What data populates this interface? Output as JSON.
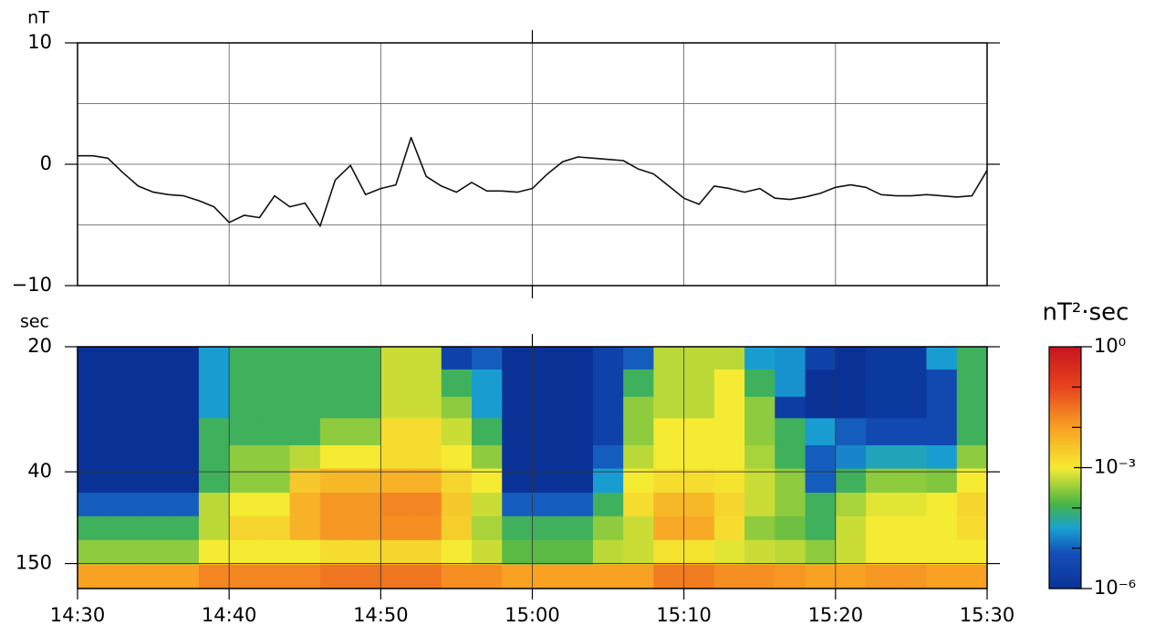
{
  "chart_data": [
    {
      "type": "line",
      "ylabel": "nT",
      "color": "#111111",
      "xlim": [
        "14:30",
        "15:30"
      ],
      "xticks": [
        "14:30",
        "14:40",
        "14:50",
        "15:00",
        "15:10",
        "15:20",
        "15:30"
      ],
      "ylim": [
        -10,
        10
      ],
      "yticks": [
        10,
        0,
        {
          "value": -10,
          "label": "−10"
        }
      ],
      "ygrid": [
        5,
        -5
      ],
      "x": [
        "14:30",
        "14:31",
        "14:32",
        "14:33",
        "14:34",
        "14:35",
        "14:36",
        "14:37",
        "14:38",
        "14:39",
        "14:40",
        "14:41",
        "14:42",
        "14:43",
        "14:44",
        "14:45",
        "14:46",
        "14:47",
        "14:48",
        "14:49",
        "14:50",
        "14:51",
        "14:52",
        "14:53",
        "14:54",
        "14:55",
        "14:56",
        "14:57",
        "14:58",
        "14:59",
        "15:00",
        "15:01",
        "15:02",
        "15:03",
        "15:04",
        "15:05",
        "15:06",
        "15:07",
        "15:08",
        "15:09",
        "15:10",
        "15:11",
        "15:12",
        "15:13",
        "15:14",
        "15:15",
        "15:16",
        "15:17",
        "15:18",
        "15:19",
        "15:20",
        "15:21",
        "15:22",
        "15:23",
        "15:24",
        "15:25",
        "15:26",
        "15:27",
        "15:28",
        "15:29",
        "15:30"
      ],
      "values": [
        0.7,
        0.7,
        0.5,
        -0.7,
        -1.8,
        -2.3,
        -2.5,
        -2.6,
        -3.0,
        -3.5,
        -4.8,
        -4.2,
        -4.4,
        -2.6,
        -3.5,
        -3.2,
        -5.1,
        -1.3,
        -0.1,
        -2.5,
        -2.0,
        -1.7,
        2.2,
        -1.0,
        -1.8,
        -2.3,
        -1.5,
        -2.2,
        -2.2,
        -2.3,
        -2.0,
        -0.8,
        0.2,
        0.6,
        0.5,
        0.4,
        0.3,
        -0.4,
        -0.8,
        -1.8,
        -2.8,
        -3.3,
        -1.8,
        -2.0,
        -2.3,
        -2.0,
        -2.8,
        -2.9,
        -2.7,
        -2.4,
        -1.9,
        -1.7,
        -1.9,
        -2.5,
        -2.6,
        -2.6,
        -2.5,
        -2.6,
        -2.7,
        -2.6,
        -0.5
      ]
    },
    {
      "type": "heatmap",
      "ylabel": "sec",
      "yscale": "reciprocal",
      "colormap": "jet",
      "xlim": [
        "14:30",
        "15:30"
      ],
      "xticks": [
        "14:30",
        "14:40",
        "14:50",
        "15:00",
        "15:10",
        "15:20",
        "15:30"
      ],
      "ylim": [
        20,
        600
      ],
      "yticks": [
        20,
        40,
        150
      ],
      "xbins": [
        "14:30",
        "14:32",
        "14:34",
        "14:36",
        "14:38",
        "14:40",
        "14:42",
        "14:44",
        "14:46",
        "14:48",
        "14:50",
        "14:52",
        "14:54",
        "14:56",
        "14:58",
        "15:00",
        "15:02",
        "15:04",
        "15:06",
        "15:08",
        "15:10",
        "15:12",
        "15:14",
        "15:16",
        "15:18",
        "15:20",
        "15:22",
        "15:24",
        "15:26",
        "15:28",
        "15:30"
      ],
      "yedges": [
        20,
        22,
        25,
        28,
        33,
        39,
        48,
        62,
        88,
        154,
        600
      ],
      "z": [
        [
          1e-06,
          1e-06,
          1e-06,
          1e-06,
          3e-05,
          0.0001,
          0.0001,
          0.0001,
          0.0001,
          0.0001,
          0.0006,
          0.0006,
          3e-06,
          1e-05,
          1e-06,
          1e-06,
          1e-06,
          3e-06,
          1e-05,
          0.0005,
          0.0005,
          0.0005,
          3e-05,
          2.5e-05,
          3e-06,
          1e-06,
          1.6e-06,
          1.6e-06,
          3e-05,
          0.0001
        ],
        [
          1e-06,
          1e-06,
          1e-06,
          1e-06,
          3e-05,
          0.0001,
          0.0001,
          0.0001,
          0.0001,
          0.0001,
          0.0006,
          0.0006,
          0.0001,
          3e-05,
          1e-06,
          1e-06,
          1e-06,
          3e-06,
          0.0001,
          0.0005,
          0.0005,
          0.001,
          0.0001,
          2.5e-05,
          1e-06,
          1e-06,
          1.6e-06,
          1.6e-06,
          5e-06,
          0.0001
        ],
        [
          1e-06,
          1e-06,
          1e-06,
          1e-06,
          3e-05,
          0.0001,
          0.0001,
          0.0001,
          0.0001,
          0.0001,
          0.0006,
          0.0006,
          0.0003,
          3e-05,
          1e-06,
          1e-06,
          1e-06,
          3e-06,
          0.0003,
          0.0005,
          0.0005,
          0.001,
          0.0003,
          2e-06,
          1e-06,
          1e-06,
          1.6e-06,
          1.6e-06,
          5e-06,
          0.0001
        ],
        [
          1e-06,
          1e-06,
          1e-06,
          1e-06,
          0.0001,
          0.0001,
          0.0001,
          0.0001,
          0.0003,
          0.0003,
          0.0016,
          0.0016,
          0.0006,
          0.0001,
          1e-06,
          1e-06,
          1e-06,
          3e-06,
          0.0003,
          0.001,
          0.001,
          0.001,
          0.0003,
          0.0001,
          3e-05,
          1e-05,
          5e-06,
          5e-06,
          5e-06,
          0.0001
        ],
        [
          1e-06,
          1e-06,
          1e-06,
          1e-06,
          0.0001,
          0.0003,
          0.0003,
          0.0005,
          0.001,
          0.001,
          0.0016,
          0.0016,
          0.001,
          0.0003,
          1e-06,
          1e-06,
          1e-06,
          1e-05,
          0.0005,
          0.001,
          0.001,
          0.001,
          0.0004,
          0.0001,
          1e-05,
          2e-05,
          4e-05,
          4e-05,
          3e-05,
          0.0003
        ],
        [
          1e-06,
          1e-06,
          1e-06,
          1e-06,
          0.0001,
          0.0003,
          0.0003,
          0.003,
          0.005,
          0.005,
          0.006,
          0.006,
          0.002,
          0.001,
          1e-06,
          1e-06,
          1e-06,
          3e-05,
          0.001,
          0.0016,
          0.0016,
          0.0013,
          0.0006,
          0.0003,
          1e-05,
          0.0001,
          0.0003,
          0.0003,
          0.00025,
          0.001
        ],
        [
          1e-05,
          1e-05,
          1e-05,
          1e-05,
          0.0005,
          0.001,
          0.001,
          0.006,
          0.013,
          0.013,
          0.02,
          0.02,
          0.003,
          0.0006,
          1e-05,
          1e-05,
          1e-05,
          0.0001,
          0.0016,
          0.005,
          0.005,
          0.002,
          0.0006,
          0.0003,
          0.0001,
          0.0004,
          0.0008,
          0.0008,
          0.001,
          0.002
        ],
        [
          0.0001,
          0.0001,
          0.0001,
          0.0001,
          0.0005,
          0.002,
          0.002,
          0.006,
          0.013,
          0.013,
          0.016,
          0.016,
          0.0025,
          0.0004,
          0.0001,
          0.0001,
          0.0001,
          0.0003,
          0.0006,
          0.008,
          0.008,
          0.0016,
          0.0003,
          0.0002,
          0.0001,
          0.0006,
          0.001,
          0.001,
          0.001,
          0.0016
        ],
        [
          0.0003,
          0.0003,
          0.0003,
          0.0003,
          0.001,
          0.001,
          0.001,
          0.001,
          0.0016,
          0.0016,
          0.002,
          0.002,
          0.001,
          0.0006,
          0.00016,
          0.00016,
          0.00016,
          0.0005,
          0.0006,
          0.0013,
          0.0013,
          0.0008,
          0.0006,
          0.0005,
          0.0003,
          0.0006,
          0.001,
          0.001,
          0.001,
          0.001
        ],
        [
          0.01,
          0.01,
          0.01,
          0.01,
          0.02,
          0.02,
          0.02,
          0.02,
          0.03,
          0.03,
          0.03,
          0.03,
          0.016,
          0.016,
          0.01,
          0.01,
          0.01,
          0.01,
          0.01,
          0.025,
          0.025,
          0.016,
          0.016,
          0.013,
          0.01,
          0.01,
          0.013,
          0.013,
          0.01,
          0.01
        ]
      ],
      "clabel": "nT²·sec",
      "clim": [
        1e-06,
        1
      ],
      "cticks": [
        {
          "value": 1,
          "label": "10⁰"
        },
        {
          "value": 0.001,
          "label": "10⁻³"
        },
        {
          "value": 1e-06,
          "label": "10⁻⁶"
        }
      ],
      "cminor": [
        1e-05,
        0.0001,
        0.01,
        0.1
      ]
    }
  ]
}
